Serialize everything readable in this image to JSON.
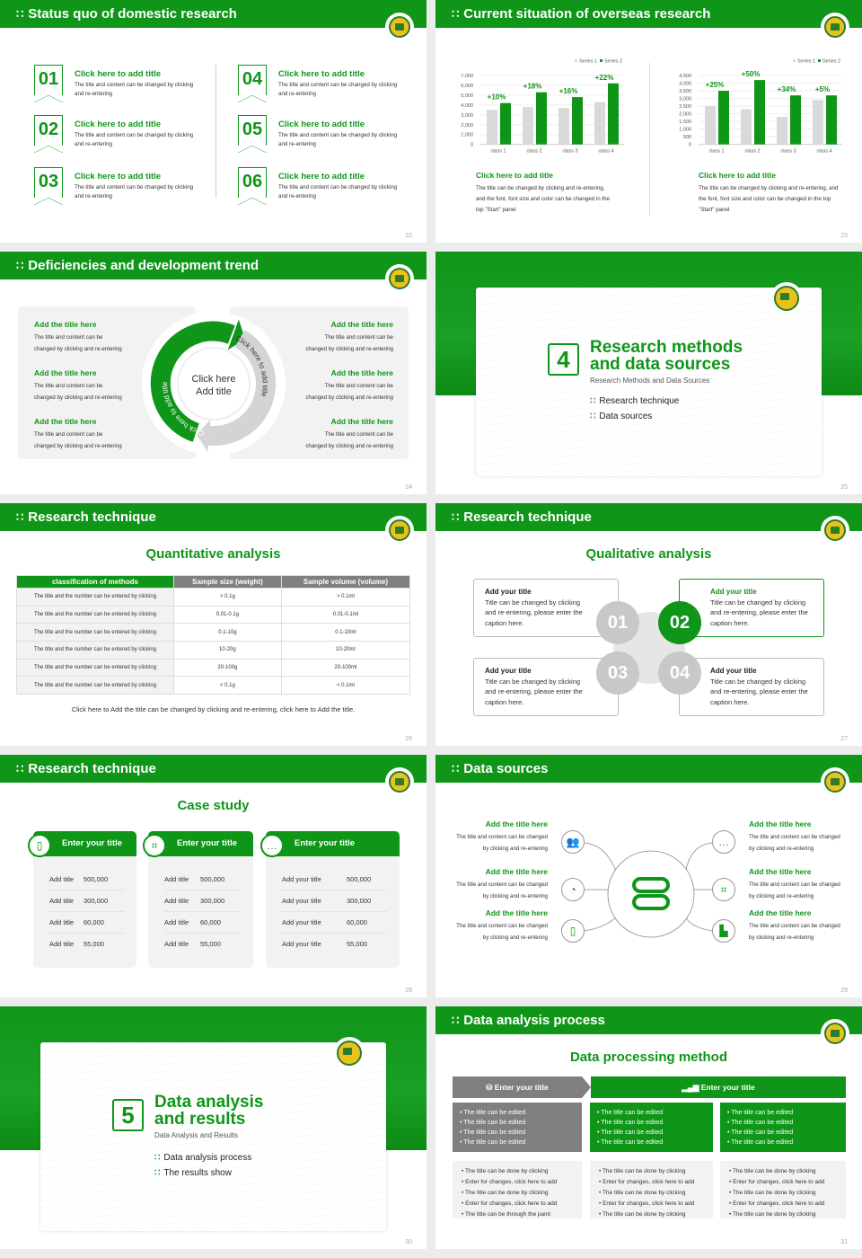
{
  "colors": {
    "green": "#0f9619",
    "gray": "#7f7f7f",
    "light_gray": "#f2f2f2",
    "series1": "#d9d9d9",
    "series2": "#0f9619"
  },
  "header_icon": "grid-dots-icon",
  "s22": {
    "title": "Status quo of domestic research",
    "page": "22",
    "items": [
      {
        "num": "01",
        "title": "Click here to add title",
        "body": "The title and content can be changed by clicking and re-entering"
      },
      {
        "num": "02",
        "title": "Click here to add title",
        "body": "The title and content can be changed by clicking and re-entering"
      },
      {
        "num": "03",
        "title": "Click here to add title",
        "body": "The title and content can be changed by clicking and re-entering"
      },
      {
        "num": "04",
        "title": "Click here to add title",
        "body": "The title and content can be changed by clicking and re-entering"
      },
      {
        "num": "05",
        "title": "Click here to add title",
        "body": "The title and content can be changed by clicking and re-entering"
      },
      {
        "num": "06",
        "title": "Click here to add title",
        "body": "The title and content can be changed by clicking and re-entering"
      }
    ]
  },
  "s23": {
    "title": "Current situation of overseas research",
    "page": "23",
    "captions": [
      {
        "title": "Click here to add title",
        "body": "The title can be changed by clicking and re-entering, and the font, font size and color can be changed in the top \"Start\" panel"
      },
      {
        "title": "Click here to add title",
        "body": "The title can be changed by clicking and re-entering, and the font, font size and color can be changed in the top \"Start\" panel"
      }
    ]
  },
  "chart_data": [
    {
      "type": "bar",
      "categories": [
        "class 1",
        "class 2",
        "class 3",
        "class 4"
      ],
      "series": [
        {
          "name": "Series 1",
          "values": [
            3500,
            3800,
            3700,
            4300
          ]
        },
        {
          "name": "Series 2",
          "values": [
            4200,
            5300,
            4800,
            6200
          ]
        }
      ],
      "annotations": [
        "+10%",
        "+18%",
        "+16%",
        "+22%"
      ],
      "ylim": [
        0,
        7000
      ],
      "yticks": [
        "0",
        "1,000",
        "2,000",
        "3,000",
        "4,000",
        "5,000",
        "6,000",
        "7,000"
      ],
      "grid": true,
      "legend": "top-right"
    },
    {
      "type": "bar",
      "categories": [
        "class 1",
        "class 2",
        "class 3",
        "class 4"
      ],
      "series": [
        {
          "name": "Series 1",
          "values": [
            2500,
            2300,
            1800,
            2900
          ]
        },
        {
          "name": "Series 2",
          "values": [
            3500,
            4200,
            3200,
            3200
          ]
        }
      ],
      "annotations": [
        "+25%",
        "+50%",
        "+34%",
        "+5%"
      ],
      "ylim": [
        0,
        4500
      ],
      "yticks": [
        "0",
        "500",
        "1,000",
        "1,500",
        "2,000",
        "2,500",
        "3,000",
        "3,500",
        "4,000",
        "4,500"
      ],
      "grid": true,
      "legend": "top-right"
    }
  ],
  "s24": {
    "title": "Deficiencies and development trend",
    "page": "24",
    "center_line1": "Click here",
    "center_line2": "Add title",
    "arc_green": "Click here to add title",
    "arc_gray": "Click here to add title",
    "left": [
      {
        "title": "Add the title here",
        "body": "The title and content can be changed by clicking and re-entering"
      },
      {
        "title": "Add the title here",
        "body": "The title and content can be changed by clicking and re-entering"
      },
      {
        "title": "Add the title here",
        "body": "The title and content can be changed by clicking and re-entering"
      }
    ],
    "right": [
      {
        "title": "Add the title here",
        "body": "The title and content can be changed by clicking and re-entering"
      },
      {
        "title": "Add the title here",
        "body": "The title and content can be changed by clicking and re-entering"
      },
      {
        "title": "Add the title here",
        "body": "The title and content can be changed by clicking and re-entering"
      }
    ]
  },
  "s25": {
    "number": "4",
    "title_line1": "Research methods",
    "title_line2": "and data sources",
    "subtitle": "Research Methods and Data Sources",
    "bullets": [
      "Research technique",
      "Data sources"
    ],
    "page": "25"
  },
  "s26": {
    "title": "Research technique",
    "heading": "Quantitative analysis",
    "page": "26",
    "table": {
      "headers": [
        "classification of methods",
        "Sample size (weight)",
        "Sample volume (volume)"
      ],
      "rows": [
        [
          "The title and the number can be entered by clicking",
          "> 0.1g",
          "> 0.1ml"
        ],
        [
          "The title and the number can be entered by clicking",
          "0.01-0.1g",
          "0.01-0.1ml"
        ],
        [
          "The title and the number can be entered by clicking",
          "0.1-10g",
          "0.1-10ml"
        ],
        [
          "The title and the number can be entered by clicking",
          "10-20g",
          "10-20ml"
        ],
        [
          "The title and the number can be entered by clicking",
          "20-100g",
          "20-100ml"
        ],
        [
          "The title and the number can be entered by clicking",
          "< 0.1g",
          "< 0.1ml"
        ]
      ]
    },
    "caption": "Click here to Add the title can be changed by clicking and re-entering, click here to Add the title."
  },
  "s27": {
    "title": "Research technique",
    "heading": "Qualitative analysis",
    "page": "27",
    "boxes": [
      {
        "num": "01",
        "title": "Add your title",
        "body": "Title can be changed by clicking and re-entering, please enter the caption here."
      },
      {
        "num": "02",
        "title": "Add your title",
        "body": "Title can be changed by clicking and re-entering, please enter the caption here."
      },
      {
        "num": "03",
        "title": "Add your title",
        "body": "Title can be changed by clicking and re-entering, please enter the caption here."
      },
      {
        "num": "04",
        "title": "Add your title",
        "body": "Title can be changed by clicking and re-entering, please enter the caption here."
      }
    ],
    "active": "02"
  },
  "s28": {
    "title": "Research technique",
    "heading": "Case study",
    "page": "28",
    "cards": [
      {
        "title": "Enter your title",
        "icon": "phone-user-icon",
        "rows": [
          {
            "label": "Add title",
            "value": "500,000"
          },
          {
            "label": "Add title",
            "value": "300,000"
          },
          {
            "label": "Add title",
            "value": "60,000"
          },
          {
            "label": "Add title",
            "value": "55,000"
          }
        ]
      },
      {
        "title": "Enter your title",
        "icon": "qr-scan-icon",
        "rows": [
          {
            "label": "Add title",
            "value": "500,000"
          },
          {
            "label": "Add title",
            "value": "300,000"
          },
          {
            "label": "Add title",
            "value": "60,000"
          },
          {
            "label": "Add title",
            "value": "55,000"
          }
        ]
      },
      {
        "title": "Enter your title",
        "icon": "chat-bubbles-icon",
        "rows": [
          {
            "label": "Add your title",
            "value": "500,000"
          },
          {
            "label": "Add your title",
            "value": "300,000"
          },
          {
            "label": "Add your title",
            "value": "60,000"
          },
          {
            "label": "Add your title",
            "value": "55,000"
          }
        ]
      }
    ]
  },
  "s29": {
    "title": "Data sources",
    "page": "29",
    "center_icon": "server-stack-icon",
    "left": [
      {
        "title": "Add the title here",
        "body": "The title and content can be changed by clicking and re-entering",
        "icon": "people-icon"
      },
      {
        "title": "Add the title here",
        "body": "The title and content can be changed by clicking and re-entering",
        "icon": "database-pie-icon"
      },
      {
        "title": "Add the title here",
        "body": "The title and content can be changed by clicking and re-entering",
        "icon": "phone-user-icon"
      }
    ],
    "right": [
      {
        "title": "Add the title here",
        "body": "The title and content can be changed by clicking and re-entering",
        "icon": "chat-bubbles-icon"
      },
      {
        "title": "Add the title here",
        "body": "The title and content can be changed by clicking and re-entering",
        "icon": "qr-scan-icon"
      },
      {
        "title": "Add the title here",
        "body": "The title and content can be changed by clicking and re-entering",
        "icon": "building-chart-icon"
      }
    ]
  },
  "s30": {
    "number": "5",
    "title_line1": "Data analysis",
    "title_line2": "and results",
    "subtitle": "Data Analysis and Results",
    "bullets": [
      "Data analysis process",
      "The results show"
    ],
    "page": "30"
  },
  "s31": {
    "title": "Data analysis process",
    "heading": "Data processing method",
    "page": "31",
    "header_left": "Enter your title",
    "header_right": "Enter your title",
    "row1": [
      [
        "The title can be edited",
        "The title can be edited",
        "The title can be edited",
        "The title can be edited"
      ],
      [
        "The title can be edited",
        "The title can be edited",
        "The title can be edited",
        "The title can be edited"
      ],
      [
        "The title can be edited",
        "The title can be edited",
        "The title can be edited",
        "The title can be edited"
      ]
    ],
    "row2": [
      [
        "The title can be done by clicking",
        "Enter for changes, click here to add",
        "The title can be done by clicking",
        "Enter for changes, click here to add",
        "The title can be through the paint"
      ],
      [
        "The title can be done by clicking",
        "Enter for changes, click here to add",
        "The title can be done by clicking",
        "Enter for changes, click here to add",
        "The title can be done by clicking"
      ],
      [
        "The title can be done by clicking",
        "Enter for changes, click here to add",
        "The title can be done by clicking",
        "Enter for changes, click here to add",
        "The title can be done by clicking"
      ]
    ]
  }
}
